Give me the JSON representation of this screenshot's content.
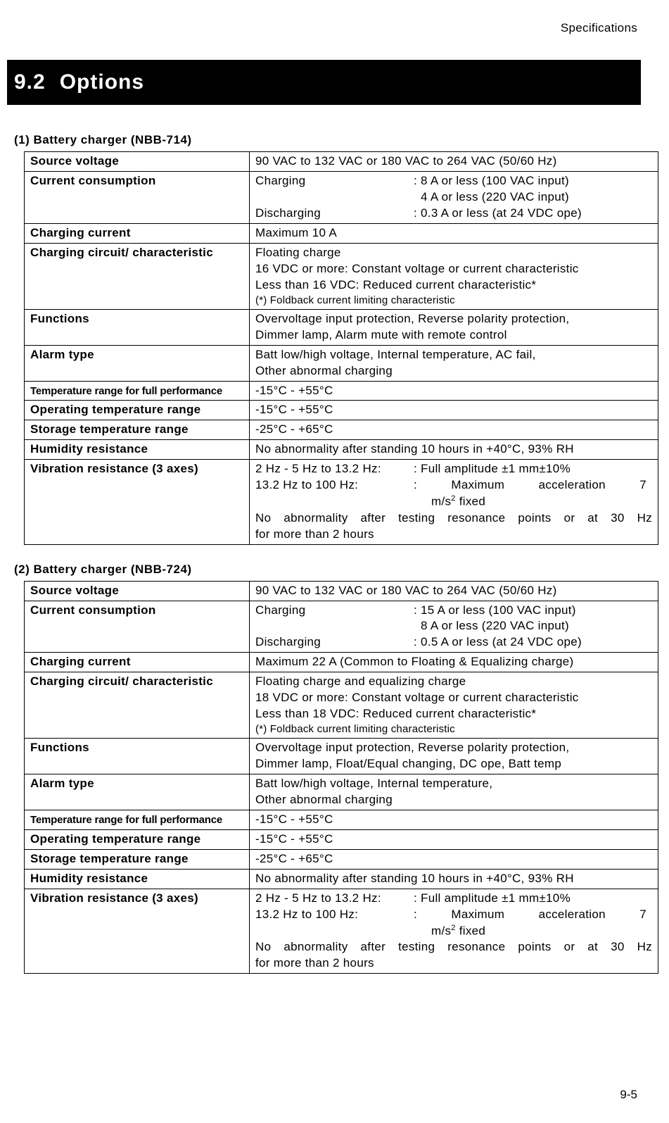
{
  "header": {
    "label": "Specifications"
  },
  "section": {
    "number": "9.2",
    "title": "Options"
  },
  "tables": [
    {
      "caption": "(1)  Battery charger (NBB-714)",
      "rows": [
        {
          "key": "Source voltage",
          "val": "90 VAC to 132 VAC or 180 VAC to 264 VAC (50/60 Hz)"
        },
        {
          "key": "Current consumption",
          "type": "cc",
          "lines": [
            {
              "l": "Charging",
              "r": ": 8 A or less (100 VAC input)"
            },
            {
              "l": "",
              "r": "  4 A or less (220 VAC input)"
            },
            {
              "l": "Discharging",
              "r": ": 0.3 A or less (at 24 VDC ope)"
            }
          ]
        },
        {
          "key": "Charging current",
          "val": "Maximum 10 A"
        },
        {
          "key": "Charging circuit/ characteristic",
          "type": "multi",
          "lines": [
            "Floating charge",
            "16 VDC or more: Constant voltage or current characteristic",
            "Less than 16 VDC: Reduced current characteristic*"
          ],
          "note": "(*) Foldback current limiting characteristic"
        },
        {
          "key": "Functions",
          "type": "multi",
          "lines": [
            "Overvoltage input protection, Reverse polarity protection,",
            "Dimmer lamp, Alarm mute with remote control"
          ]
        },
        {
          "key": "Alarm type",
          "type": "multi",
          "lines": [
            "Batt low/high voltage, Internal temperature, AC fail,",
            "Other abnormal charging"
          ]
        },
        {
          "key": "Temperature range for full performance",
          "compressed": true,
          "val": "-15°C - +55°C"
        },
        {
          "key": "Operating temperature range",
          "val": "-15°C - +55°C"
        },
        {
          "key": "Storage temperature range",
          "val": "-25°C - +65°C"
        },
        {
          "key": "Humidity resistance",
          "val": "No abnormality after standing 10 hours in +40°C, 93% RH"
        },
        {
          "key": "Vibration resistance (3 axes)",
          "type": "vib",
          "pairs": [
            {
              "l": "2 Hz - 5 Hz to 13.2 Hz:",
              "r": ": Full amplitude ±1 mm±10%"
            },
            {
              "l": "13.2 Hz to 100 Hz:",
              "r": ": Maximum acceleration 7",
              "j": true
            }
          ],
          "ms": "m/s² fixed",
          "tail": "No abnormality after testing resonance points or at 30 Hz for more than 2 hours"
        }
      ]
    },
    {
      "caption": "(2)  Battery charger (NBB-724)",
      "rows": [
        {
          "key": "Source voltage",
          "val": "90 VAC to 132 VAC or 180 VAC to 264 VAC (50/60 Hz)"
        },
        {
          "key": "Current consumption",
          "type": "cc",
          "lines": [
            {
              "l": "Charging",
              "r": ": 15 A or less (100 VAC input)"
            },
            {
              "l": "",
              "r": "  8 A or less (220 VAC input)"
            },
            {
              "l": "Discharging",
              "r": ": 0.5 A or less (at 24 VDC ope)"
            }
          ]
        },
        {
          "key": "Charging current",
          "val": "Maximum 22 A (Common to Floating & Equalizing charge)"
        },
        {
          "key": "Charging circuit/ characteristic",
          "type": "multi",
          "lines": [
            "Floating charge and equalizing charge",
            "18 VDC or more: Constant voltage or current characteristic",
            "Less than 18 VDC: Reduced current characteristic*"
          ],
          "note": "(*) Foldback current limiting characteristic"
        },
        {
          "key": "Functions",
          "type": "multi",
          "lines": [
            "Overvoltage input protection, Reverse polarity protection,",
            "Dimmer lamp, Float/Equal changing, DC ope, Batt temp"
          ]
        },
        {
          "key": "Alarm type",
          "type": "multi",
          "lines": [
            "Batt low/high voltage, Internal temperature,",
            "Other abnormal charging"
          ]
        },
        {
          "key": "Temperature range for full performance",
          "compressed": true,
          "val": "-15°C - +55°C"
        },
        {
          "key": "Operating temperature range",
          "val": "-15°C - +55°C"
        },
        {
          "key": "Storage temperature range",
          "val": "-25°C - +65°C"
        },
        {
          "key": "Humidity resistance",
          "val": "No abnormality after standing 10 hours in +40°C, 93% RH"
        },
        {
          "key": "Vibration resistance (3 axes)",
          "type": "vib",
          "pairs": [
            {
              "l": "2 Hz - 5 Hz to 13.2 Hz:",
              "r": ": Full amplitude ±1 mm±10%"
            },
            {
              "l": "13.2 Hz to 100 Hz:",
              "r": ": Maximum acceleration 7",
              "j": true
            }
          ],
          "ms": "m/s² fixed",
          "tail": "No abnormality after testing resonance points or at 30 Hz for more than 2 hours"
        }
      ]
    }
  ],
  "pageNumber": "9-5"
}
